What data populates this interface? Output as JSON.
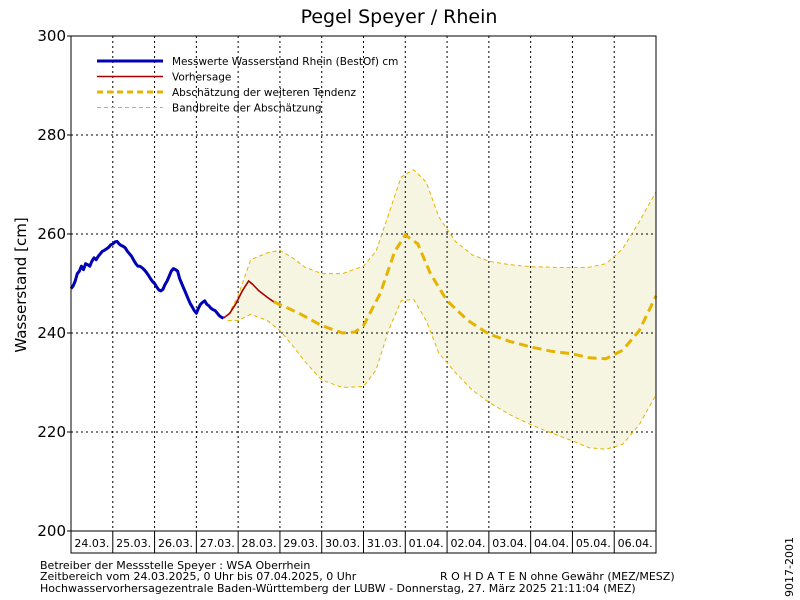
{
  "chart_data": {
    "type": "line",
    "title": "Pegel Speyer / Rhein",
    "ylabel": "Wasserstand [cm]",
    "ylim": [
      200,
      300
    ],
    "yticks": [
      200,
      220,
      240,
      260,
      280,
      300
    ],
    "x_start": "24.03.",
    "x_days": 14,
    "categories": [
      "24.03.",
      "25.03.",
      "26.03.",
      "27.03.",
      "28.03.",
      "29.03.",
      "30.03.",
      "31.03.",
      "01.04.",
      "02.04.",
      "03.04.",
      "04.04.",
      "05.04.",
      "06.04."
    ],
    "grid": true,
    "legend_position": "top-left",
    "legend": [
      "Messwerte Wasserstand Rhein (BestOf)  cm",
      "Vorhersage",
      "Abschätzung der weiteren Tendenz",
      "Bandbreite der Abschätzung"
    ],
    "colors": {
      "measured": "#0000b4",
      "forecast": "#aa0000",
      "tendency": "#e6b400",
      "band_fill": "#f5f5e1",
      "band_line": "#e6b400",
      "grid": "#000000"
    },
    "series": [
      {
        "name": "Messwerte Wasserstand Rhein (BestOf)  cm",
        "x": [
          0,
          0.05,
          0.1,
          0.15,
          0.2,
          0.25,
          0.3,
          0.35,
          0.4,
          0.45,
          0.5,
          0.55,
          0.6,
          0.65,
          0.7,
          0.75,
          0.8,
          0.85,
          0.9,
          0.95,
          1.0,
          1.05,
          1.1,
          1.15,
          1.2,
          1.25,
          1.3,
          1.35,
          1.4,
          1.45,
          1.5,
          1.55,
          1.6,
          1.65,
          1.7,
          1.75,
          1.8,
          1.85,
          1.9,
          1.95,
          2.0,
          2.05,
          2.1,
          2.15,
          2.2,
          2.25,
          2.3,
          2.35,
          2.4,
          2.45,
          2.5,
          2.55,
          2.6,
          2.65,
          2.7,
          2.75,
          2.8,
          2.85,
          2.9,
          2.95,
          3.0,
          3.05,
          3.1,
          3.15,
          3.2,
          3.25,
          3.3,
          3.35,
          3.4,
          3.45,
          3.5,
          3.55,
          3.6,
          3.65
        ],
        "values": [
          249,
          249.5,
          250.5,
          252,
          252.5,
          253.5,
          252.8,
          254,
          253.8,
          253.5,
          254.5,
          255.2,
          254.8,
          255.5,
          256,
          256.5,
          256.7,
          257,
          257.3,
          257.8,
          258,
          258.4,
          258.5,
          258,
          257.7,
          257.5,
          257.2,
          256.5,
          256,
          255.5,
          254.7,
          254,
          253.5,
          253.5,
          253.2,
          252.8,
          252.3,
          251.7,
          251,
          250.4,
          250,
          249.3,
          248.7,
          248.5,
          248.8,
          249.8,
          250.5,
          251.5,
          252.5,
          253,
          252.8,
          252.5,
          251,
          250,
          249,
          248,
          247,
          246,
          245.3,
          244.5,
          244,
          245,
          245.8,
          246.2,
          246.5,
          245.8,
          245.5,
          245,
          244.7,
          244.5,
          244,
          243.5,
          243.2,
          243
        ]
      },
      {
        "name": "Vorhersage",
        "x": [
          3.65,
          3.8,
          3.95,
          4.1,
          4.25,
          4.35,
          4.5,
          4.7,
          4.85
        ],
        "values": [
          243,
          244,
          246,
          248.5,
          250.5,
          249.8,
          248.5,
          247.2,
          246.3
        ]
      },
      {
        "name": "Abschätzung der weiteren Tendenz",
        "x": [
          4.85,
          5.2,
          5.5,
          6.0,
          6.5,
          6.8,
          7.0,
          7.4,
          7.75,
          8.0,
          8.3,
          8.6,
          9.0,
          9.5,
          10.0,
          10.5,
          11.0,
          11.5,
          12.0,
          12.4,
          12.8,
          13.2,
          13.6,
          14.0
        ],
        "values": [
          246.3,
          245,
          243.8,
          241.5,
          240,
          240.2,
          241.5,
          248,
          256.5,
          259.8,
          258,
          252,
          246.5,
          242.5,
          239.8,
          238.3,
          237.2,
          236.3,
          235.8,
          235,
          234.8,
          236.5,
          240.5,
          247.5
        ]
      },
      {
        "name": "Bandbreite der Abschätzung",
        "x": [
          3.75,
          4.0,
          4.3,
          4.7,
          5.0,
          5.3,
          5.6,
          6.0,
          6.5,
          7.0,
          7.3,
          7.6,
          7.9,
          8.2,
          8.5,
          8.8,
          9.2,
          9.6,
          10.0,
          10.5,
          11.0,
          11.5,
          12.0,
          12.4,
          12.8,
          13.2,
          13.6,
          14.0
        ],
        "upper": [
          243.5,
          247.5,
          254.8,
          256.2,
          256.7,
          255.2,
          253.3,
          252,
          252,
          253.5,
          256.5,
          264,
          271.5,
          273,
          270.5,
          263.5,
          258.5,
          255.8,
          254.5,
          253.8,
          253.4,
          253.3,
          253.2,
          253.3,
          254,
          257,
          262.5,
          268.5
        ],
        "lower": [
          242.5,
          242.5,
          243.8,
          242.5,
          240.5,
          237.5,
          234.2,
          230.5,
          229,
          229.2,
          232.5,
          240.5,
          246.5,
          246.8,
          242.5,
          236,
          232,
          228.5,
          226,
          223.5,
          221.5,
          219.8,
          218.2,
          216.8,
          216.5,
          217.5,
          221.5,
          227.5
        ]
      }
    ]
  },
  "footer": {
    "line1": "Betreiber der Messstelle Speyer : WSA Oberrhein",
    "line2a": "Zeitbereich vom 24.03.2025, 0 Uhr bis 07.04.2025, 0 Uhr",
    "line2b": "R O H D A T E N ohne Gewähr (MEZ/MESZ)",
    "line3": "Hochwasservorhersagezentrale Baden-Württemberg der LUBW - Donnerstag, 27. März 2025 21:11:04 (MEZ)",
    "side_code": "9017-2001"
  }
}
